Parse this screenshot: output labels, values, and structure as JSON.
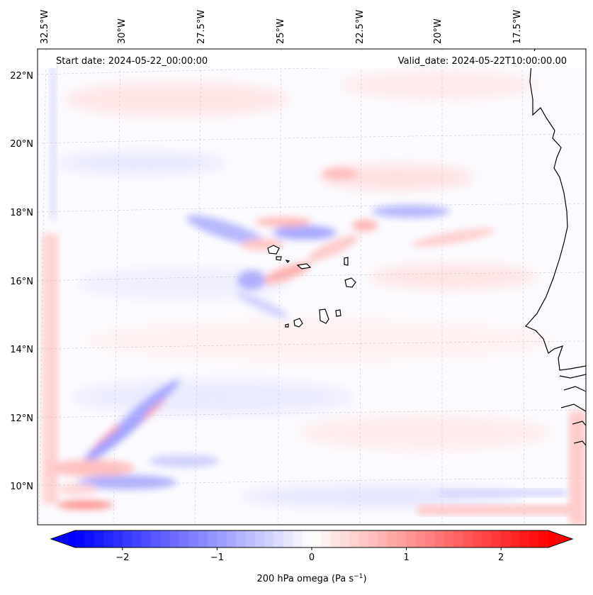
{
  "map": {
    "start_label": "Start date: 2024-05-22_00:00:00",
    "valid_label": "Valid_date: 2024-05-22T10:00:00.00",
    "lon_labels": [
      "32.5°W",
      "30°W",
      "27.5°W",
      "25°W",
      "22.5°W",
      "20°W",
      "17.5°W"
    ],
    "lat_labels": [
      "22°N",
      "20°N",
      "18°N",
      "16°N",
      "14°N",
      "12°N",
      "10°N"
    ],
    "gridlines": true
  },
  "colorbar": {
    "ticks": [
      "−2",
      "−1",
      "0",
      "1",
      "2"
    ],
    "tick_values": [
      -2,
      -1,
      0,
      1,
      2
    ],
    "range": [
      -2.5,
      2.5
    ],
    "label_main": "200 hPa omega (Pa s",
    "label_sup": "−1",
    "label_close": ")",
    "colormap": "bwr",
    "extend": "both",
    "neg_color": "#0000ff",
    "zero_color": "#ffffff",
    "pos_color": "#ff0000"
  }
}
